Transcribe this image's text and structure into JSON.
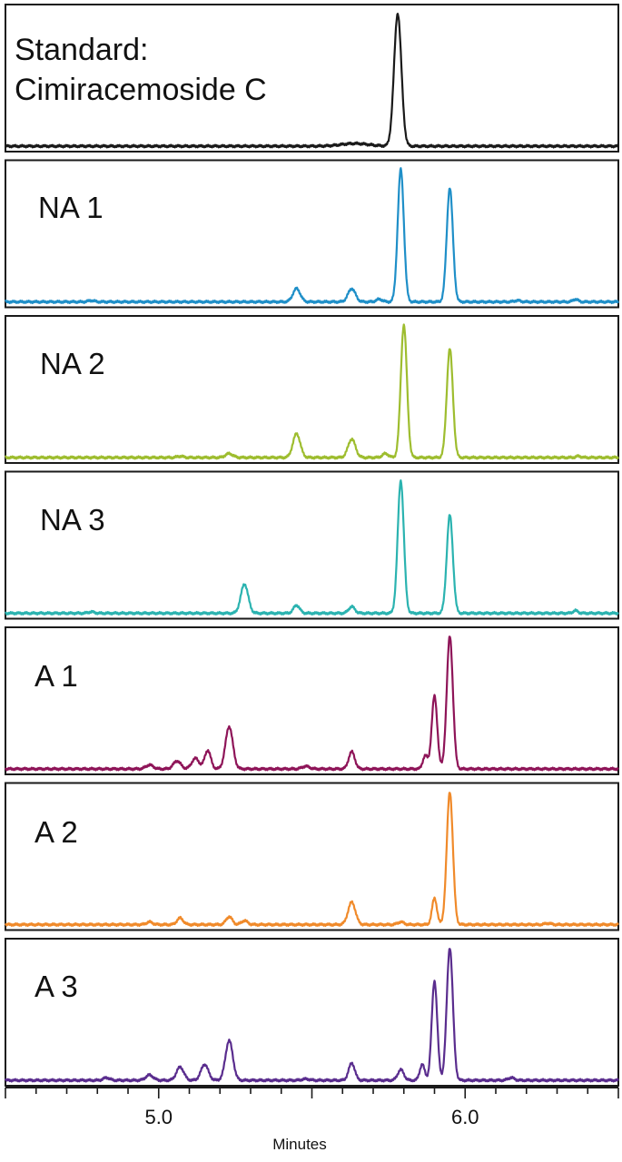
{
  "chart_data": {
    "type": "line",
    "x_label": "Minutes",
    "x_range": [
      4.5,
      6.5
    ],
    "x_ticks": [
      5.0,
      6.0
    ],
    "x_tick_labels": [
      "5.0",
      "6.0"
    ],
    "grid": false,
    "panels": [
      {
        "name_lines": [
          "Standard:",
          "Cimiracemoside C"
        ],
        "color": "#1a1a1a",
        "peaks": [
          [
            5.64,
            0.02,
            0.045
          ],
          [
            5.78,
            1.0,
            0.012
          ]
        ]
      },
      {
        "name_lines": [
          "NA 1"
        ],
        "color": "#1f8fc8",
        "peaks": [
          [
            4.78,
            0.01,
            0.01
          ],
          [
            5.45,
            0.1,
            0.012
          ],
          [
            5.63,
            0.1,
            0.012
          ],
          [
            5.72,
            0.02,
            0.01
          ],
          [
            5.79,
            1.0,
            0.01
          ],
          [
            5.95,
            0.86,
            0.01
          ],
          [
            6.17,
            0.01,
            0.01
          ],
          [
            6.36,
            0.02,
            0.008
          ]
        ]
      },
      {
        "name_lines": [
          "NA 2"
        ],
        "color": "#9ebd2f",
        "peaks": [
          [
            5.07,
            0.01,
            0.01
          ],
          [
            5.23,
            0.03,
            0.012
          ],
          [
            5.45,
            0.18,
            0.012
          ],
          [
            5.63,
            0.14,
            0.012
          ],
          [
            5.74,
            0.03,
            0.01
          ],
          [
            5.8,
            1.0,
            0.01
          ],
          [
            5.95,
            0.82,
            0.01
          ],
          [
            6.37,
            0.01,
            0.008
          ]
        ]
      },
      {
        "name_lines": [
          "NA 3"
        ],
        "color": "#2bb3b0",
        "peaks": [
          [
            4.78,
            0.01,
            0.01
          ],
          [
            5.28,
            0.22,
            0.012
          ],
          [
            5.45,
            0.06,
            0.01
          ],
          [
            5.63,
            0.05,
            0.01
          ],
          [
            5.79,
            1.0,
            0.01
          ],
          [
            5.95,
            0.74,
            0.01
          ],
          [
            6.36,
            0.02,
            0.008
          ]
        ]
      },
      {
        "name_lines": [
          "A 1"
        ],
        "color": "#8e1458",
        "peaks": [
          [
            4.97,
            0.03,
            0.012
          ],
          [
            5.06,
            0.06,
            0.012
          ],
          [
            5.12,
            0.08,
            0.012
          ],
          [
            5.16,
            0.14,
            0.01
          ],
          [
            5.23,
            0.32,
            0.012
          ],
          [
            5.48,
            0.02,
            0.012
          ],
          [
            5.63,
            0.13,
            0.01
          ],
          [
            5.87,
            0.1,
            0.008
          ],
          [
            5.9,
            0.55,
            0.009
          ],
          [
            5.95,
            1.0,
            0.01
          ]
        ]
      },
      {
        "name_lines": [
          "A 2"
        ],
        "color": "#f08a2a",
        "peaks": [
          [
            4.97,
            0.02,
            0.01
          ],
          [
            5.07,
            0.05,
            0.01
          ],
          [
            5.23,
            0.06,
            0.01
          ],
          [
            5.28,
            0.03,
            0.01
          ],
          [
            5.63,
            0.17,
            0.012
          ],
          [
            5.79,
            0.02,
            0.01
          ],
          [
            5.9,
            0.2,
            0.008
          ],
          [
            5.95,
            1.0,
            0.01
          ],
          [
            6.27,
            0.01,
            0.01
          ]
        ]
      },
      {
        "name_lines": [
          "A 3"
        ],
        "color": "#5a2d8e",
        "peaks": [
          [
            4.83,
            0.02,
            0.01
          ],
          [
            4.97,
            0.04,
            0.012
          ],
          [
            5.07,
            0.1,
            0.012
          ],
          [
            5.15,
            0.12,
            0.012
          ],
          [
            5.23,
            0.3,
            0.012
          ],
          [
            5.48,
            0.01,
            0.012
          ],
          [
            5.63,
            0.13,
            0.01
          ],
          [
            5.79,
            0.08,
            0.01
          ],
          [
            5.86,
            0.12,
            0.008
          ],
          [
            5.9,
            0.75,
            0.009
          ],
          [
            5.95,
            1.0,
            0.01
          ],
          [
            6.15,
            0.02,
            0.01
          ]
        ]
      }
    ]
  }
}
